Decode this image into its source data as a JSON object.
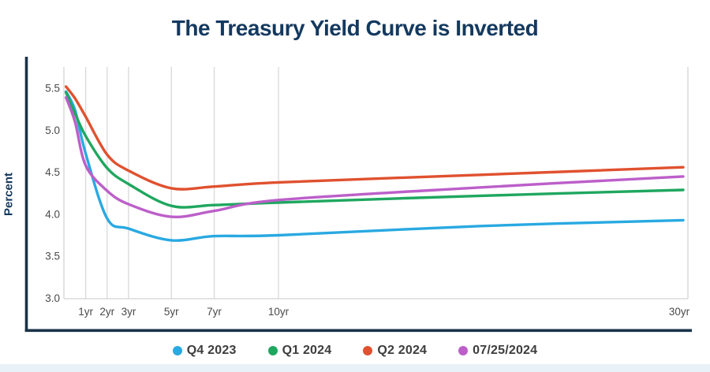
{
  "page": {
    "bottom_strip_color": "#E9F1F8"
  },
  "chart_data": {
    "type": "line",
    "title": "The Treasury Yield Curve is Inverted",
    "ylabel": "Percent",
    "xlabel": "",
    "ylim": [
      3.0,
      5.5
    ],
    "ytick_labels": [
      "5.5",
      "5.0",
      "4.5",
      "4.0",
      "3.5",
      "3.0"
    ],
    "yticks": [
      5.5,
      5.0,
      4.5,
      4.0,
      3.5,
      3.0
    ],
    "xticks": [
      {
        "value": 1,
        "label": "1yr"
      },
      {
        "value": 2,
        "label": "2yr"
      },
      {
        "value": 3,
        "label": "3yr"
      },
      {
        "value": 5,
        "label": "5yr"
      },
      {
        "value": 7,
        "label": "7yr"
      },
      {
        "value": 10,
        "label": "10yr"
      },
      {
        "value": 30,
        "label": "30yr"
      }
    ],
    "grid": "vertical-only",
    "legend_position": "bottom",
    "x_unit": "years to maturity",
    "x": [
      0.08,
      0.5,
      1,
      2,
      3,
      5,
      7,
      10,
      20,
      30
    ],
    "series": [
      {
        "name": "Q4 2023",
        "color": "#29A9E1",
        "values": [
          5.46,
          5.24,
          4.72,
          3.95,
          3.83,
          3.69,
          3.74,
          3.75,
          3.86,
          3.93
        ]
      },
      {
        "name": "Q1 2024",
        "color": "#1FA75F",
        "values": [
          5.45,
          5.2,
          4.93,
          4.55,
          4.36,
          4.1,
          4.11,
          4.14,
          4.22,
          4.29
        ]
      },
      {
        "name": "Q2 2024",
        "color": "#E0512F",
        "values": [
          5.52,
          5.38,
          5.16,
          4.71,
          4.52,
          4.31,
          4.33,
          4.38,
          4.47,
          4.56
        ]
      },
      {
        "name": "07/25/2024",
        "color": "#BC5FC9",
        "values": [
          5.39,
          5.1,
          4.58,
          4.28,
          4.12,
          3.97,
          4.04,
          4.17,
          4.32,
          4.45
        ]
      }
    ],
    "colors": {
      "title": "#14395F",
      "axis_spine": "#1A3349",
      "plot_border": "#D4D4D4",
      "gridline": "#D9D9D9",
      "tick_label": "#4A4A4A",
      "legend_text": "#3D3D3D"
    }
  }
}
